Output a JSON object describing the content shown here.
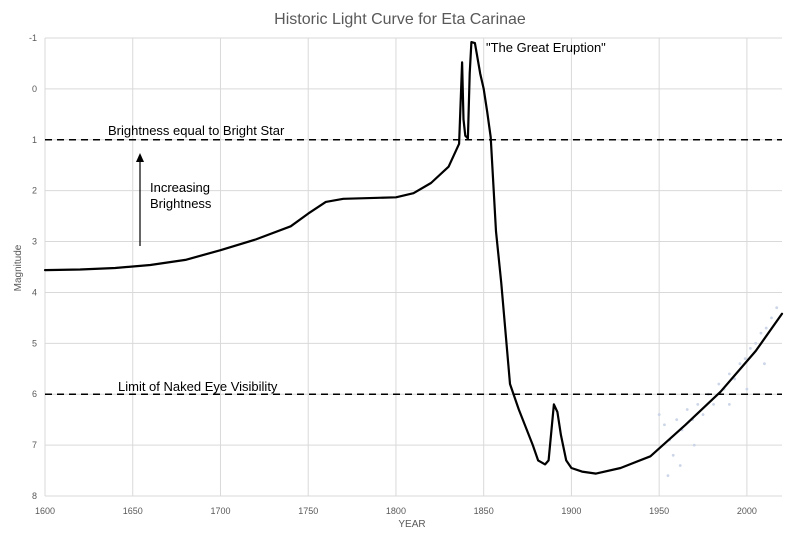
{
  "chart_data": {
    "type": "line",
    "title": "Historic Light Curve for Eta Carinae",
    "xlabel": "YEAR",
    "ylabel": "Magnitude",
    "xlim": [
      1600,
      2020
    ],
    "ylim": [
      -1,
      8
    ],
    "y_inverted": true,
    "grid": true,
    "x_ticks": [
      1600,
      1650,
      1700,
      1750,
      1800,
      1850,
      1900,
      1950,
      2000
    ],
    "y_ticks": [
      -1,
      0,
      1,
      2,
      3,
      4,
      5,
      6,
      7,
      8
    ],
    "series": [
      {
        "name": "",
        "color": "#000000",
        "points": [
          [
            1600,
            3.56
          ],
          [
            1620,
            3.55
          ],
          [
            1640,
            3.52
          ],
          [
            1660,
            3.46
          ],
          [
            1680,
            3.36
          ],
          [
            1700,
            3.17
          ],
          [
            1720,
            2.96
          ],
          [
            1740,
            2.7
          ],
          [
            1750,
            2.45
          ],
          [
            1760,
            2.22
          ],
          [
            1770,
            2.16
          ],
          [
            1790,
            2.14
          ],
          [
            1800,
            2.13
          ],
          [
            1810,
            2.05
          ],
          [
            1820,
            1.85
          ],
          [
            1830,
            1.53
          ],
          [
            1836,
            1.08
          ],
          [
            1837.7,
            -0.52
          ],
          [
            1838.5,
            0.6
          ],
          [
            1839.5,
            0.92
          ],
          [
            1841,
            0.97
          ],
          [
            1842,
            -0.3
          ],
          [
            1843,
            -0.92
          ],
          [
            1845,
            -0.9
          ],
          [
            1846,
            -0.7
          ],
          [
            1848,
            -0.3
          ],
          [
            1850,
            0.0
          ],
          [
            1852,
            0.45
          ],
          [
            1854,
            0.95
          ],
          [
            1857,
            2.8
          ],
          [
            1860,
            3.8
          ],
          [
            1865,
            5.8
          ],
          [
            1870,
            6.3
          ],
          [
            1878,
            7.0
          ],
          [
            1881,
            7.3
          ],
          [
            1885,
            7.38
          ],
          [
            1887,
            7.3
          ],
          [
            1890,
            6.2
          ],
          [
            1892,
            6.35
          ],
          [
            1894,
            6.8
          ],
          [
            1897,
            7.3
          ],
          [
            1900,
            7.45
          ],
          [
            1906,
            7.52
          ],
          [
            1914,
            7.56
          ],
          [
            1928,
            7.45
          ],
          [
            1945,
            7.22
          ],
          [
            1965,
            6.6
          ],
          [
            1985,
            5.95
          ],
          [
            2005,
            5.15
          ],
          [
            2020,
            4.42
          ]
        ]
      },
      {
        "name": "",
        "type": "scatter",
        "color": "#c7d2e5",
        "points": [
          [
            1950,
            6.4
          ],
          [
            1953,
            6.6
          ],
          [
            1956,
            6.9
          ],
          [
            1960,
            6.5
          ],
          [
            1963,
            6.7
          ],
          [
            1966,
            6.3
          ],
          [
            1969,
            6.5
          ],
          [
            1972,
            6.2
          ],
          [
            1975,
            6.4
          ],
          [
            1978,
            6.0
          ],
          [
            1981,
            6.2
          ],
          [
            1984,
            5.8
          ],
          [
            1987,
            5.9
          ],
          [
            1990,
            5.6
          ],
          [
            1993,
            5.7
          ],
          [
            1996,
            5.4
          ],
          [
            1999,
            5.3
          ],
          [
            2002,
            5.1
          ],
          [
            2005,
            5.0
          ],
          [
            2008,
            4.8
          ],
          [
            2011,
            4.7
          ],
          [
            2014,
            4.5
          ],
          [
            2017,
            4.3
          ],
          [
            1958,
            7.2
          ],
          [
            1962,
            7.4
          ],
          [
            1955,
            7.6
          ],
          [
            1970,
            7.0
          ],
          [
            1990,
            6.2
          ],
          [
            2000,
            5.9
          ],
          [
            2010,
            5.4
          ]
        ]
      }
    ],
    "reference_lines": [
      {
        "value": 1,
        "label": "Brightness equal to Bright Star"
      },
      {
        "value": 6,
        "label": "Limit of Naked Eye Visibility"
      }
    ],
    "annotations": [
      {
        "text": "\"The Great Eruption\""
      },
      {
        "text": "Increasing"
      },
      {
        "text": "Brightness"
      }
    ]
  }
}
